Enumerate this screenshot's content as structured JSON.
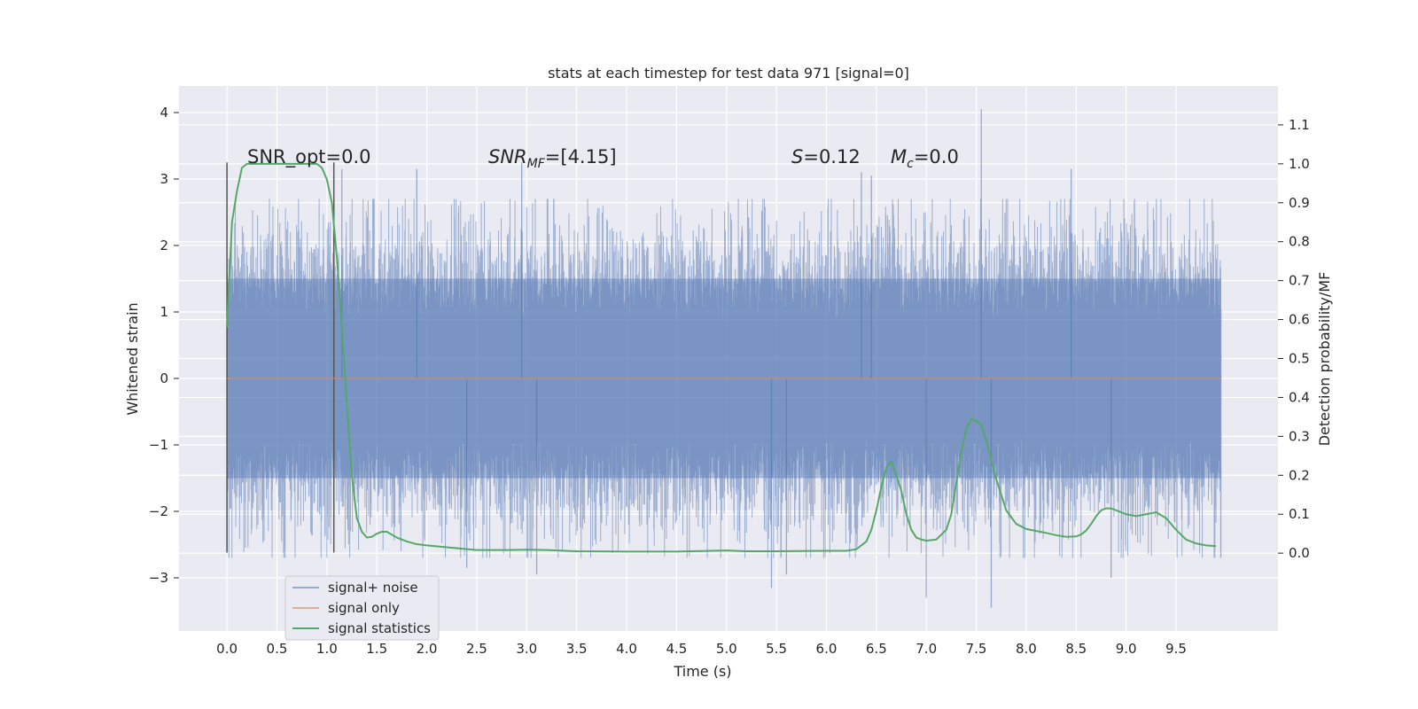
{
  "chart_data": {
    "type": "line",
    "title": "stats at each timestep for test data 971 [signal=0]",
    "xlabel": "Time (s)",
    "ylabel": "Whitened strain",
    "y2label": "Detection probability/MF",
    "xlim": [
      -0.48,
      10.52
    ],
    "ylim": [
      -3.8,
      4.4
    ],
    "y2lim": [
      -0.2,
      1.2
    ],
    "x_ticks": [
      "0.0",
      "0.5",
      "1.0",
      "1.5",
      "2.0",
      "2.5",
      "3.0",
      "3.5",
      "4.0",
      "4.5",
      "5.0",
      "5.5",
      "6.0",
      "6.5",
      "7.0",
      "7.5",
      "8.0",
      "8.5",
      "9.0",
      "9.5"
    ],
    "y_ticks": [
      "4",
      "3",
      "2",
      "1",
      "0",
      "−1",
      "−2",
      "−3"
    ],
    "y2_ticks": [
      "1.1",
      "1.0",
      "0.9",
      "0.8",
      "0.7",
      "0.6",
      "0.5",
      "0.4",
      "0.3",
      "0.2",
      "0.1",
      "0.0"
    ],
    "grid": true,
    "legend_position": "lower-left",
    "annotations": {
      "snr_opt": "SNR_opt=0.0",
      "snr_mf_base": "SNR",
      "snr_mf_sub": "MF",
      "snr_mf_rest": "=[4.15]",
      "s_label": "S",
      "s_value": "=0.12",
      "mc_base": "M",
      "mc_sub": "c",
      "mc_value": "=0.0"
    },
    "vertical_markers_x": [
      0.0,
      1.07
    ],
    "series": [
      {
        "name": "signal+ noise",
        "color": "#4c72b0",
        "description_values": {
          "x_range": [
            0.0,
            9.95
          ],
          "typical_abs_max": 1.5,
          "peaks": [
            {
              "x": 0.0,
              "y": 1.8
            },
            {
              "x": 0.0,
              "y": -2.6
            },
            {
              "x": 1.15,
              "y": 3.15
            },
            {
              "x": 1.9,
              "y": 3.15
            },
            {
              "x": 2.95,
              "y": 3.25
            },
            {
              "x": 6.35,
              "y": 3.1
            },
            {
              "x": 6.45,
              "y": 3.05
            },
            {
              "x": 7.55,
              "y": 4.05
            },
            {
              "x": 8.45,
              "y": 3.15
            },
            {
              "x": 5.45,
              "y": -3.15
            },
            {
              "x": 5.6,
              "y": -2.95
            },
            {
              "x": 7.0,
              "y": -3.3
            },
            {
              "x": 7.65,
              "y": -3.45
            },
            {
              "x": 8.85,
              "y": -3.0
            },
            {
              "x": 3.1,
              "y": -2.95
            },
            {
              "x": 2.4,
              "y": -2.85
            }
          ]
        }
      },
      {
        "name": "signal only",
        "color": "#dd8452",
        "x": [
          0.0,
          9.95
        ],
        "y": [
          0.0,
          0.0
        ]
      },
      {
        "name": "signal statistics",
        "color": "#55a868",
        "axis": "right",
        "x": [
          0.0,
          0.05,
          0.1,
          0.15,
          0.2,
          0.3,
          0.4,
          0.5,
          0.6,
          0.7,
          0.8,
          0.9,
          0.95,
          1.0,
          1.05,
          1.1,
          1.15,
          1.2,
          1.25,
          1.3,
          1.35,
          1.4,
          1.45,
          1.5,
          1.55,
          1.6,
          1.7,
          1.8,
          1.9,
          2.0,
          2.2,
          2.5,
          2.8,
          3.0,
          3.2,
          3.5,
          4.0,
          4.5,
          5.0,
          5.2,
          5.5,
          6.0,
          6.2,
          6.3,
          6.4,
          6.45,
          6.5,
          6.55,
          6.6,
          6.65,
          6.7,
          6.75,
          6.8,
          6.85,
          6.9,
          6.95,
          7.0,
          7.1,
          7.2,
          7.25,
          7.3,
          7.35,
          7.4,
          7.45,
          7.5,
          7.55,
          7.6,
          7.65,
          7.7,
          7.75,
          7.8,
          7.9,
          8.0,
          8.1,
          8.2,
          8.3,
          8.4,
          8.5,
          8.55,
          8.6,
          8.65,
          8.7,
          8.75,
          8.8,
          8.85,
          8.9,
          9.0,
          9.1,
          9.2,
          9.3,
          9.4,
          9.5,
          9.6,
          9.7,
          9.8,
          9.9
        ],
        "y": [
          0.58,
          0.85,
          0.93,
          0.99,
          1.0,
          1.0,
          1.0,
          1.0,
          1.0,
          1.0,
          1.0,
          1.0,
          0.99,
          0.96,
          0.9,
          0.76,
          0.58,
          0.38,
          0.2,
          0.09,
          0.055,
          0.04,
          0.042,
          0.05,
          0.055,
          0.055,
          0.04,
          0.03,
          0.023,
          0.02,
          0.015,
          0.008,
          0.008,
          0.009,
          0.008,
          0.005,
          0.004,
          0.004,
          0.007,
          0.005,
          0.005,
          0.006,
          0.006,
          0.01,
          0.03,
          0.06,
          0.11,
          0.17,
          0.22,
          0.235,
          0.2,
          0.16,
          0.1,
          0.06,
          0.04,
          0.035,
          0.032,
          0.035,
          0.06,
          0.1,
          0.18,
          0.26,
          0.32,
          0.345,
          0.34,
          0.33,
          0.29,
          0.24,
          0.19,
          0.15,
          0.11,
          0.075,
          0.062,
          0.057,
          0.052,
          0.046,
          0.042,
          0.043,
          0.048,
          0.058,
          0.075,
          0.095,
          0.11,
          0.115,
          0.115,
          0.11,
          0.1,
          0.095,
          0.1,
          0.105,
          0.09,
          0.06,
          0.035,
          0.025,
          0.02,
          0.018
        ]
      }
    ]
  }
}
